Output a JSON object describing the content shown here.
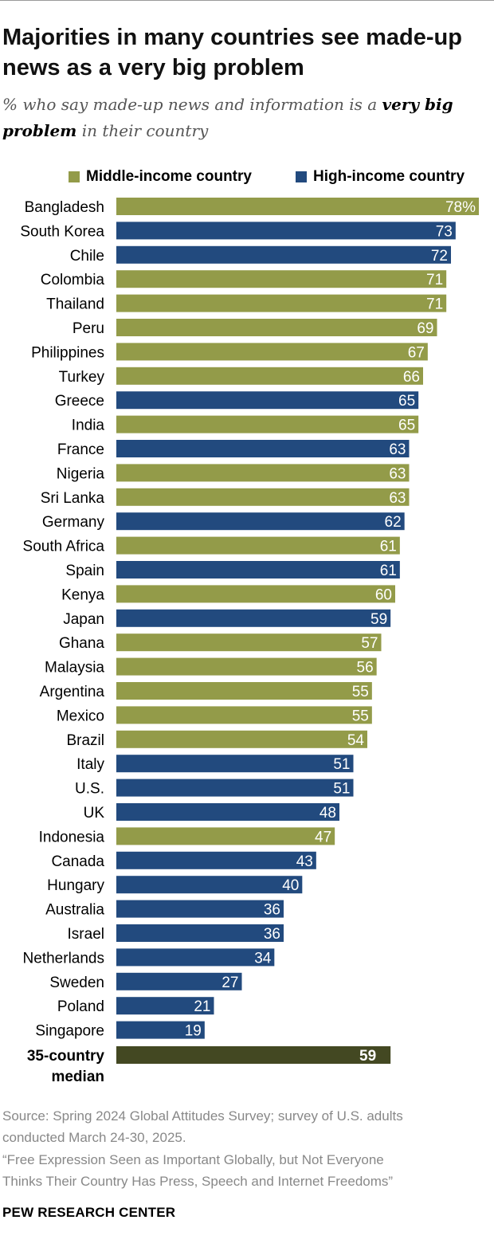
{
  "header": {
    "title": "Majorities in many countries see made-up news as a very big problem",
    "subtitle_pre": "% who say made-up news and information is a ",
    "subtitle_bold": "very big problem",
    "subtitle_post": " in their country"
  },
  "legend": {
    "middle_label": "Middle-income country",
    "high_label": "High-income country"
  },
  "colors": {
    "middle": "#939b49",
    "high": "#224a7e",
    "median": "#434822"
  },
  "chart_data": {
    "type": "bar",
    "orientation": "horizontal",
    "unit": "%",
    "xlim": [
      0,
      100
    ],
    "grid": false,
    "legend_position": "top-right",
    "categories": [
      "Bangladesh",
      "South Korea",
      "Chile",
      "Colombia",
      "Thailand",
      "Peru",
      "Philippines",
      "Turkey",
      "Greece",
      "India",
      "France",
      "Nigeria",
      "Sri Lanka",
      "Germany",
      "South Africa",
      "Spain",
      "Kenya",
      "Japan",
      "Ghana",
      "Malaysia",
      "Argentina",
      "Mexico",
      "Brazil",
      "Italy",
      "U.S.",
      "UK",
      "Indonesia",
      "Canada",
      "Hungary",
      "Australia",
      "Israel",
      "Netherlands",
      "Sweden",
      "Poland",
      "Singapore"
    ],
    "values": [
      78,
      73,
      72,
      71,
      71,
      69,
      67,
      66,
      65,
      65,
      63,
      63,
      63,
      62,
      61,
      61,
      60,
      59,
      57,
      56,
      55,
      55,
      54,
      51,
      51,
      48,
      47,
      43,
      40,
      36,
      36,
      34,
      27,
      21,
      19
    ],
    "labels": [
      "78%",
      "73",
      "72",
      "71",
      "71",
      "69",
      "67",
      "66",
      "65",
      "65",
      "63",
      "63",
      "63",
      "62",
      "61",
      "61",
      "60",
      "59",
      "57",
      "56",
      "55",
      "55",
      "54",
      "51",
      "51",
      "48",
      "47",
      "43",
      "40",
      "36",
      "36",
      "34",
      "27",
      "21",
      "19"
    ],
    "income_group": [
      "middle",
      "high",
      "high",
      "middle",
      "middle",
      "middle",
      "middle",
      "middle",
      "high",
      "middle",
      "high",
      "middle",
      "middle",
      "high",
      "middle",
      "high",
      "middle",
      "high",
      "middle",
      "middle",
      "middle",
      "middle",
      "middle",
      "high",
      "high",
      "high",
      "middle",
      "high",
      "high",
      "high",
      "high",
      "high",
      "high",
      "high",
      "high"
    ],
    "median": {
      "label_line1": "35-country",
      "label_line2": "median",
      "value": 59,
      "value_label": "59"
    }
  },
  "footer": {
    "source_line1": "Source: Spring 2024 Global Attitudes Survey; survey of U.S. adults",
    "source_line2": "conducted March 24-30, 2025.",
    "report_line1": "“Free Expression Seen as Important Globally, but Not Everyone",
    "report_line2": "Thinks Their Country Has Press, Speech and Internet Freedoms”",
    "brand": "PEW RESEARCH CENTER"
  }
}
